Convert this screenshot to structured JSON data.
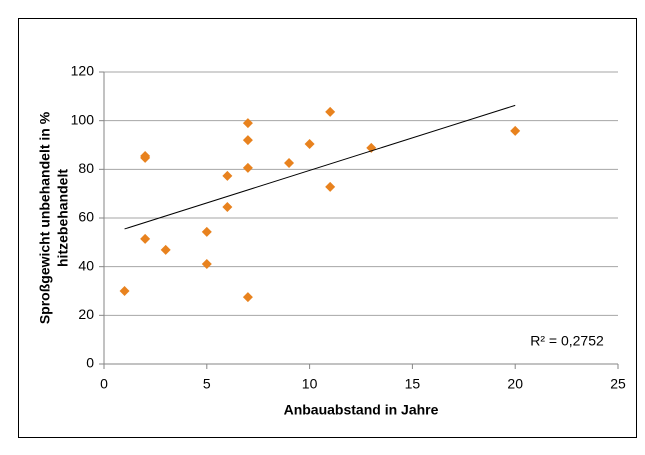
{
  "chart_data": {
    "type": "scatter",
    "x": [
      1,
      2,
      2,
      2,
      3,
      5,
      5,
      6,
      6,
      7,
      7,
      7,
      7,
      9,
      10,
      11,
      11,
      13,
      20
    ],
    "y": [
      30,
      85.5,
      84.7,
      51.4,
      46.9,
      54.3,
      41.1,
      77.3,
      64.5,
      99,
      92,
      80.6,
      27.5,
      82.6,
      90.4,
      103.6,
      72.8,
      88.8,
      95.8
    ],
    "color": "#e8821e",
    "xlim": [
      0,
      25
    ],
    "xticks": [
      0,
      5,
      10,
      15,
      20,
      25
    ],
    "ylim": [
      0,
      120
    ],
    "yticks": [
      0,
      20,
      40,
      60,
      80,
      100,
      120
    ],
    "grid": true,
    "xlabel": "Anbauabstand in Jahre",
    "ylabel": [
      "Sproßgewicht unbehandelt in %",
      "hitzebehandelt"
    ],
    "trendline": {
      "x": [
        1,
        20
      ],
      "y": [
        55.5,
        106.3
      ]
    },
    "annotation": "R² = 0,2752"
  }
}
